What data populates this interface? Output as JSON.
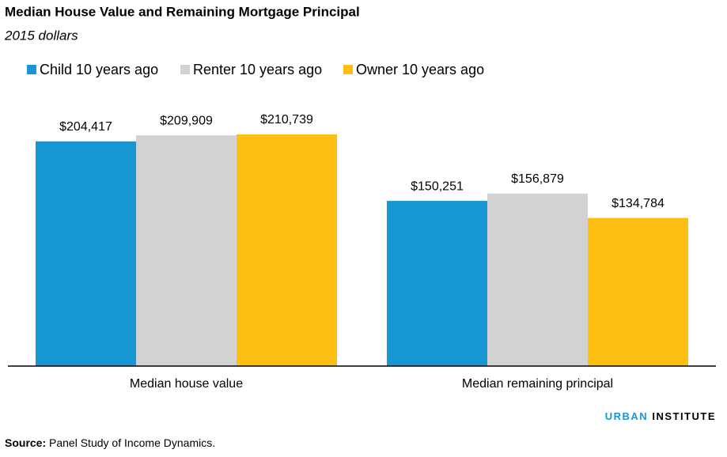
{
  "chart_data": {
    "type": "bar",
    "title": "Median House Value and Remaining Mortgage Principal",
    "subtitle": "2015 dollars",
    "categories": [
      "Median house value",
      "Median remaining principal"
    ],
    "series": [
      {
        "name": "Child 10 years ago",
        "color": "#1696d2",
        "values": [
          204417,
          150251
        ],
        "value_labels": [
          "$204,417",
          "$150,251"
        ]
      },
      {
        "name": "Renter 10 years ago",
        "color": "#d2d2d2",
        "values": [
          209909,
          156879
        ],
        "value_labels": [
          "$209,909",
          "$156,879"
        ]
      },
      {
        "name": "Owner 10 years ago",
        "color": "#fdbf11",
        "values": [
          210739,
          134784
        ],
        "value_labels": [
          "$210,739",
          "$134,784"
        ]
      }
    ],
    "legend": "top-left",
    "branding": [
      "URBAN",
      "INSTITUTE"
    ],
    "source_label": "Source:",
    "source": "Panel Study of Income Dynamics."
  }
}
